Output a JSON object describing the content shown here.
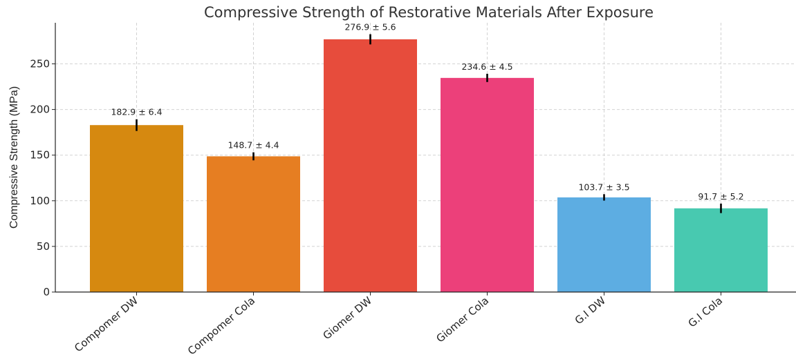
{
  "chart_data": {
    "type": "bar",
    "title": "Compressive Strength of Restorative Materials After Exposure",
    "xlabel": "",
    "ylabel": "Compressive Strength (MPa)",
    "ylim": [
      0,
      295
    ],
    "yticks": [
      0,
      50,
      100,
      150,
      200,
      250
    ],
    "categories": [
      "Compomer DW",
      "Compomer Cola",
      "Giomer DW",
      "Giomer Cola",
      "G.I DW",
      "G.I Cola"
    ],
    "values": [
      182.9,
      148.7,
      276.9,
      234.6,
      103.7,
      91.7
    ],
    "errors": [
      6.4,
      4.4,
      5.6,
      4.5,
      3.5,
      5.2
    ],
    "data_labels": [
      "182.9 ± 6.4",
      "148.7 ± 4.4",
      "276.9 ± 5.6",
      "234.6 ± 4.5",
      "103.7 ± 3.5",
      "91.7 ± 5.2"
    ],
    "colors": [
      "#D68910",
      "#E67E22",
      "#E74C3C",
      "#EC407A",
      "#5DADE2",
      "#48C9B0"
    ],
    "grid": true
  }
}
